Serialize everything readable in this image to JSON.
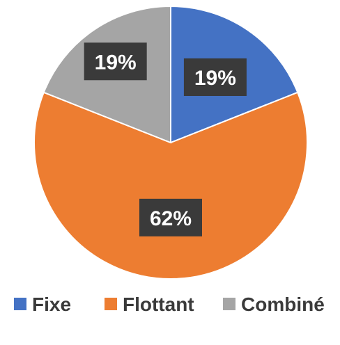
{
  "chart_data": {
    "type": "pie",
    "title": "",
    "categories": [
      "Fixe",
      "Flottant",
      "Combiné"
    ],
    "values": [
      19,
      62,
      19
    ],
    "data_labels": [
      "19%",
      "62%",
      "19%"
    ],
    "colors": [
      "#4472c4",
      "#ed7d31",
      "#a5a5a5"
    ],
    "legend_position": "bottom",
    "start_angle": "12 o'clock",
    "direction": "clockwise"
  }
}
